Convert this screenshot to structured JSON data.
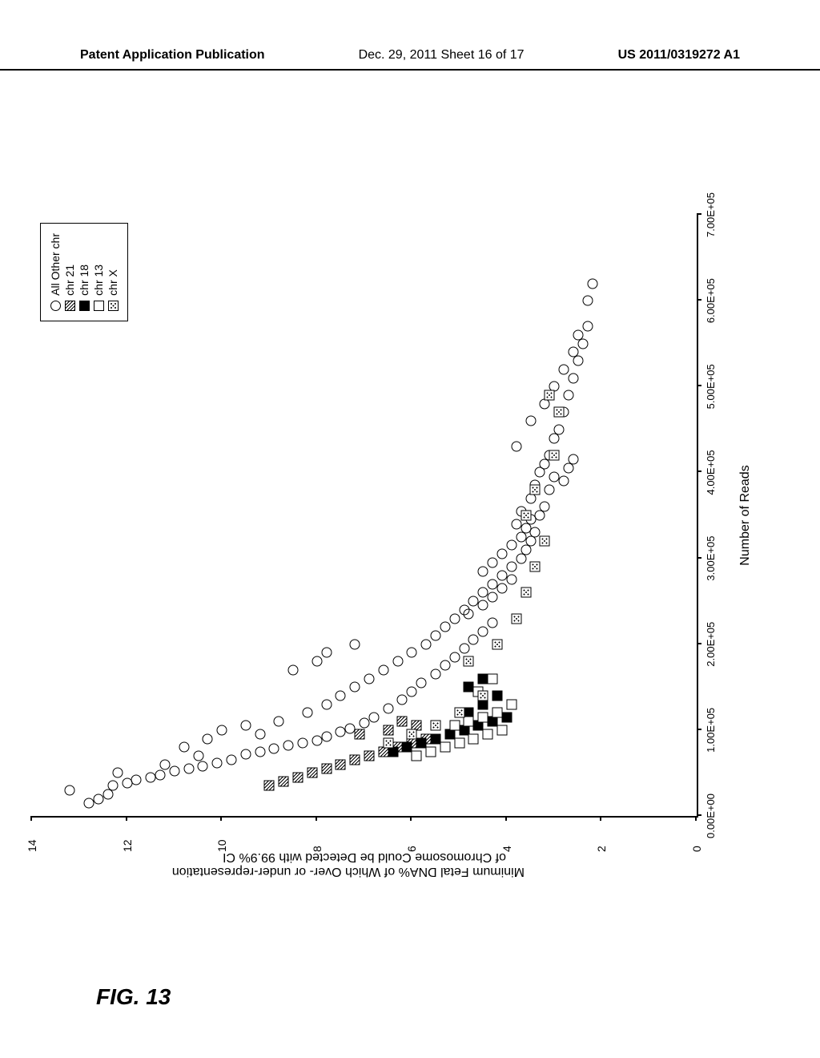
{
  "header": {
    "left": "Patent Application Publication",
    "center": "Dec. 29, 2011  Sheet 16 of 17",
    "right": "US 2011/0319272 A1"
  },
  "figure_label": "FIG. 13",
  "chart": {
    "type": "scatter",
    "ylabel_line1": "Minimum Fetal DNA% of Which Over- or under-representation",
    "ylabel_line2": "of Chromosome Could be Detected with 99.9% CI",
    "xlabel": "Number of Reads",
    "ylim": [
      0,
      14
    ],
    "yticks": [
      0,
      2,
      4,
      6,
      8,
      10,
      12,
      14
    ],
    "xlim": [
      0,
      700000
    ],
    "xticks": [
      "0.00E+00",
      "1.00E+05",
      "2.00E+05",
      "3.00E+05",
      "4.00E+05",
      "5.00E+05",
      "6.00E+05",
      "7.00E+05"
    ],
    "xtick_values": [
      0,
      100000,
      200000,
      300000,
      400000,
      500000,
      600000,
      700000
    ],
    "legend": {
      "items": [
        {
          "marker": "circle",
          "label": "All Other chr"
        },
        {
          "marker": "hatch",
          "label": "chr 21"
        },
        {
          "marker": "solid",
          "label": "chr 18"
        },
        {
          "marker": "open-sq",
          "label": "chr 13"
        },
        {
          "marker": "dotted",
          "label": "chr X"
        }
      ]
    },
    "series": {
      "circle": [
        [
          15000,
          12.8
        ],
        [
          20000,
          12.6
        ],
        [
          25000,
          12.4
        ],
        [
          30000,
          13.2
        ],
        [
          35000,
          12.3
        ],
        [
          38000,
          12.0
        ],
        [
          42000,
          11.8
        ],
        [
          45000,
          11.5
        ],
        [
          48000,
          11.3
        ],
        [
          50000,
          12.2
        ],
        [
          52000,
          11.0
        ],
        [
          55000,
          10.7
        ],
        [
          58000,
          10.4
        ],
        [
          60000,
          11.2
        ],
        [
          62000,
          10.1
        ],
        [
          65000,
          9.8
        ],
        [
          70000,
          10.5
        ],
        [
          72000,
          9.5
        ],
        [
          75000,
          9.2
        ],
        [
          78000,
          8.9
        ],
        [
          80000,
          10.8
        ],
        [
          82000,
          8.6
        ],
        [
          85000,
          8.3
        ],
        [
          88000,
          8.0
        ],
        [
          90000,
          10.3
        ],
        [
          92000,
          7.8
        ],
        [
          95000,
          9.2
        ],
        [
          98000,
          7.5
        ],
        [
          100000,
          10.0
        ],
        [
          102000,
          7.3
        ],
        [
          105000,
          9.5
        ],
        [
          108000,
          7.0
        ],
        [
          110000,
          8.8
        ],
        [
          115000,
          6.8
        ],
        [
          120000,
          8.2
        ],
        [
          125000,
          6.5
        ],
        [
          130000,
          7.8
        ],
        [
          135000,
          6.2
        ],
        [
          140000,
          7.5
        ],
        [
          145000,
          6.0
        ],
        [
          150000,
          7.2
        ],
        [
          155000,
          5.8
        ],
        [
          160000,
          6.9
        ],
        [
          165000,
          5.5
        ],
        [
          170000,
          6.6
        ],
        [
          170000,
          8.5
        ],
        [
          175000,
          5.3
        ],
        [
          180000,
          6.3
        ],
        [
          180000,
          8.0
        ],
        [
          185000,
          5.1
        ],
        [
          190000,
          6.0
        ],
        [
          190000,
          7.8
        ],
        [
          195000,
          4.9
        ],
        [
          200000,
          5.7
        ],
        [
          200000,
          7.2
        ],
        [
          205000,
          4.7
        ],
        [
          210000,
          5.5
        ],
        [
          215000,
          4.5
        ],
        [
          220000,
          5.3
        ],
        [
          225000,
          4.3
        ],
        [
          230000,
          5.1
        ],
        [
          235000,
          4.8
        ],
        [
          240000,
          4.9
        ],
        [
          245000,
          4.5
        ],
        [
          250000,
          4.7
        ],
        [
          255000,
          4.3
        ],
        [
          260000,
          4.5
        ],
        [
          265000,
          4.1
        ],
        [
          270000,
          4.3
        ],
        [
          275000,
          3.9
        ],
        [
          280000,
          4.1
        ],
        [
          285000,
          4.5
        ],
        [
          290000,
          3.9
        ],
        [
          295000,
          4.3
        ],
        [
          300000,
          3.7
        ],
        [
          305000,
          4.1
        ],
        [
          310000,
          3.6
        ],
        [
          315000,
          3.9
        ],
        [
          320000,
          3.5
        ],
        [
          325000,
          3.7
        ],
        [
          330000,
          3.4
        ],
        [
          335000,
          3.6
        ],
        [
          340000,
          3.8
        ],
        [
          345000,
          3.5
        ],
        [
          350000,
          3.3
        ],
        [
          355000,
          3.7
        ],
        [
          360000,
          3.2
        ],
        [
          370000,
          3.5
        ],
        [
          380000,
          3.1
        ],
        [
          385000,
          3.4
        ],
        [
          390000,
          2.8
        ],
        [
          395000,
          3.0
        ],
        [
          400000,
          3.3
        ],
        [
          405000,
          2.7
        ],
        [
          410000,
          3.2
        ],
        [
          415000,
          2.6
        ],
        [
          420000,
          3.1
        ],
        [
          430000,
          3.8
        ],
        [
          440000,
          3.0
        ],
        [
          450000,
          2.9
        ],
        [
          460000,
          3.5
        ],
        [
          470000,
          2.8
        ],
        [
          480000,
          3.2
        ],
        [
          490000,
          2.7
        ],
        [
          500000,
          3.0
        ],
        [
          510000,
          2.6
        ],
        [
          520000,
          2.8
        ],
        [
          530000,
          2.5
        ],
        [
          540000,
          2.6
        ],
        [
          550000,
          2.4
        ],
        [
          560000,
          2.5
        ],
        [
          570000,
          2.3
        ],
        [
          600000,
          2.3
        ],
        [
          620000,
          2.2
        ]
      ],
      "hatch": [
        [
          35000,
          9.0
        ],
        [
          40000,
          8.7
        ],
        [
          45000,
          8.4
        ],
        [
          50000,
          8.1
        ],
        [
          55000,
          7.8
        ],
        [
          60000,
          7.5
        ],
        [
          65000,
          7.2
        ],
        [
          70000,
          6.9
        ],
        [
          75000,
          6.6
        ],
        [
          80000,
          6.3
        ],
        [
          85000,
          6.0
        ],
        [
          90000,
          5.7
        ],
        [
          95000,
          7.1
        ],
        [
          100000,
          6.5
        ],
        [
          105000,
          5.9
        ],
        [
          110000,
          6.2
        ]
      ],
      "solid": [
        [
          75000,
          6.4
        ],
        [
          80000,
          6.1
        ],
        [
          85000,
          5.8
        ],
        [
          90000,
          5.5
        ],
        [
          95000,
          5.2
        ],
        [
          100000,
          4.9
        ],
        [
          105000,
          4.6
        ],
        [
          110000,
          4.3
        ],
        [
          115000,
          4.0
        ],
        [
          120000,
          4.8
        ],
        [
          130000,
          4.5
        ],
        [
          140000,
          4.2
        ],
        [
          150000,
          4.8
        ],
        [
          160000,
          4.5
        ]
      ],
      "open-sq": [
        [
          70000,
          5.9
        ],
        [
          75000,
          5.6
        ],
        [
          80000,
          5.3
        ],
        [
          85000,
          5.0
        ],
        [
          90000,
          4.7
        ],
        [
          95000,
          4.4
        ],
        [
          100000,
          4.1
        ],
        [
          105000,
          5.1
        ],
        [
          110000,
          4.8
        ],
        [
          115000,
          4.5
        ],
        [
          120000,
          4.2
        ],
        [
          130000,
          3.9
        ],
        [
          145000,
          4.6
        ],
        [
          160000,
          4.3
        ]
      ],
      "dotted": [
        [
          85000,
          6.5
        ],
        [
          95000,
          6.0
        ],
        [
          105000,
          5.5
        ],
        [
          120000,
          5.0
        ],
        [
          140000,
          4.5
        ],
        [
          180000,
          4.8
        ],
        [
          200000,
          4.2
        ],
        [
          230000,
          3.8
        ],
        [
          260000,
          3.6
        ],
        [
          290000,
          3.4
        ],
        [
          320000,
          3.2
        ],
        [
          350000,
          3.6
        ],
        [
          380000,
          3.4
        ],
        [
          420000,
          3.0
        ],
        [
          470000,
          2.9
        ],
        [
          490000,
          3.1
        ]
      ]
    },
    "background_color": "#ffffff",
    "marker_stroke": "#000000",
    "axis_color": "#000000",
    "marker_size": 11
  }
}
